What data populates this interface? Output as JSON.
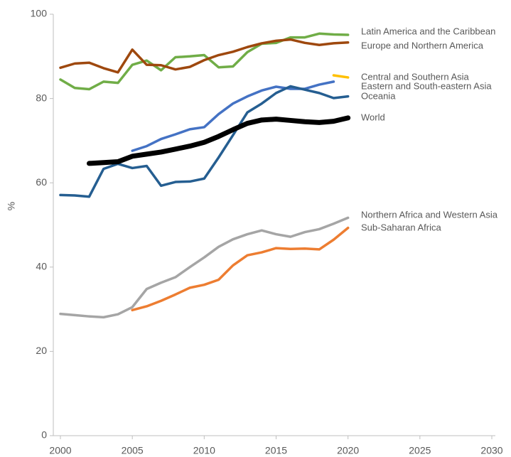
{
  "chart_data": {
    "type": "line",
    "y_label": "%",
    "x": [
      2000,
      2001,
      2002,
      2003,
      2004,
      2005,
      2006,
      2007,
      2008,
      2009,
      2010,
      2011,
      2012,
      2013,
      2014,
      2015,
      2016,
      2017,
      2018,
      2019,
      2020
    ],
    "xlim": [
      2000,
      2030
    ],
    "xticks": [
      2000,
      2005,
      2010,
      2015,
      2020,
      2025,
      2030
    ],
    "ylim": [
      0,
      100
    ],
    "yticks": [
      0,
      20,
      40,
      60,
      80,
      100
    ],
    "grid": false,
    "series": [
      {
        "name": "Latin America and the Caribbean",
        "color": "#70ad47",
        "values": [
          84.5,
          82.5,
          82.2,
          84,
          83.7,
          88,
          89,
          86.7,
          89.8,
          90,
          90.3,
          87.4,
          87.6,
          91,
          93,
          93.2,
          94.5,
          94.5,
          95.4,
          95.2,
          95.1
        ]
      },
      {
        "name": "Europe and Northern America",
        "color": "#9e480e",
        "values": [
          87.3,
          88.3,
          88.5,
          87.2,
          86.2,
          91.6,
          88,
          87.9,
          86.9,
          87.5,
          89.1,
          90.3,
          91.1,
          92.2,
          93.1,
          93.7,
          94,
          93.2,
          92.7,
          93.1,
          93.3
        ]
      },
      {
        "name": "Central and Southern Asia",
        "color": "#ffc000",
        "values": [
          null,
          null,
          null,
          null,
          null,
          null,
          null,
          null,
          null,
          null,
          null,
          null,
          null,
          null,
          null,
          null,
          null,
          null,
          null,
          85.5,
          85.0
        ]
      },
      {
        "name": "Eastern and South-eastern Asia",
        "color": "#4472c4",
        "values": [
          null,
          null,
          null,
          null,
          null,
          67.6,
          68.7,
          70.4,
          71.5,
          72.7,
          73.2,
          76.3,
          78.8,
          80.5,
          81.9,
          82.8,
          82.3,
          82.3,
          83.3,
          84.0,
          null
        ]
      },
      {
        "name": "Oceania",
        "color": "#255e91",
        "values": [
          57.1,
          57,
          56.7,
          63.3,
          64.5,
          63.5,
          64,
          59.3,
          60.2,
          60.3,
          61,
          66,
          71.3,
          76.7,
          78.8,
          81.3,
          82.9,
          82.1,
          81.3,
          80.1,
          80.5
        ]
      },
      {
        "name": "World",
        "color": "#000000",
        "values": [
          null,
          null,
          64.6,
          64.8,
          65,
          66.3,
          66.8,
          67.3,
          68,
          68.7,
          69.6,
          71,
          72.6,
          74.1,
          74.9,
          75.1,
          74.8,
          74.5,
          74.3,
          74.6,
          75.4
        ]
      },
      {
        "name": "Northern Africa and Western Asia",
        "color": "#a5a5a5",
        "values": [
          28.9,
          28.6,
          28.3,
          28.1,
          28.8,
          30.5,
          34.8,
          36.3,
          37.6,
          40,
          42.3,
          44.8,
          46.6,
          47.8,
          48.7,
          47.8,
          47.2,
          48.3,
          49,
          50.3,
          51.7
        ]
      },
      {
        "name": "Sub-Saharan Africa",
        "color": "#ed7d31",
        "values": [
          null,
          null,
          null,
          null,
          null,
          29.8,
          30.7,
          32,
          33.5,
          35.1,
          35.8,
          37,
          40.4,
          42.8,
          43.5,
          44.5,
          44.3,
          44.4,
          44.2,
          46.5,
          49.3
        ]
      }
    ]
  }
}
